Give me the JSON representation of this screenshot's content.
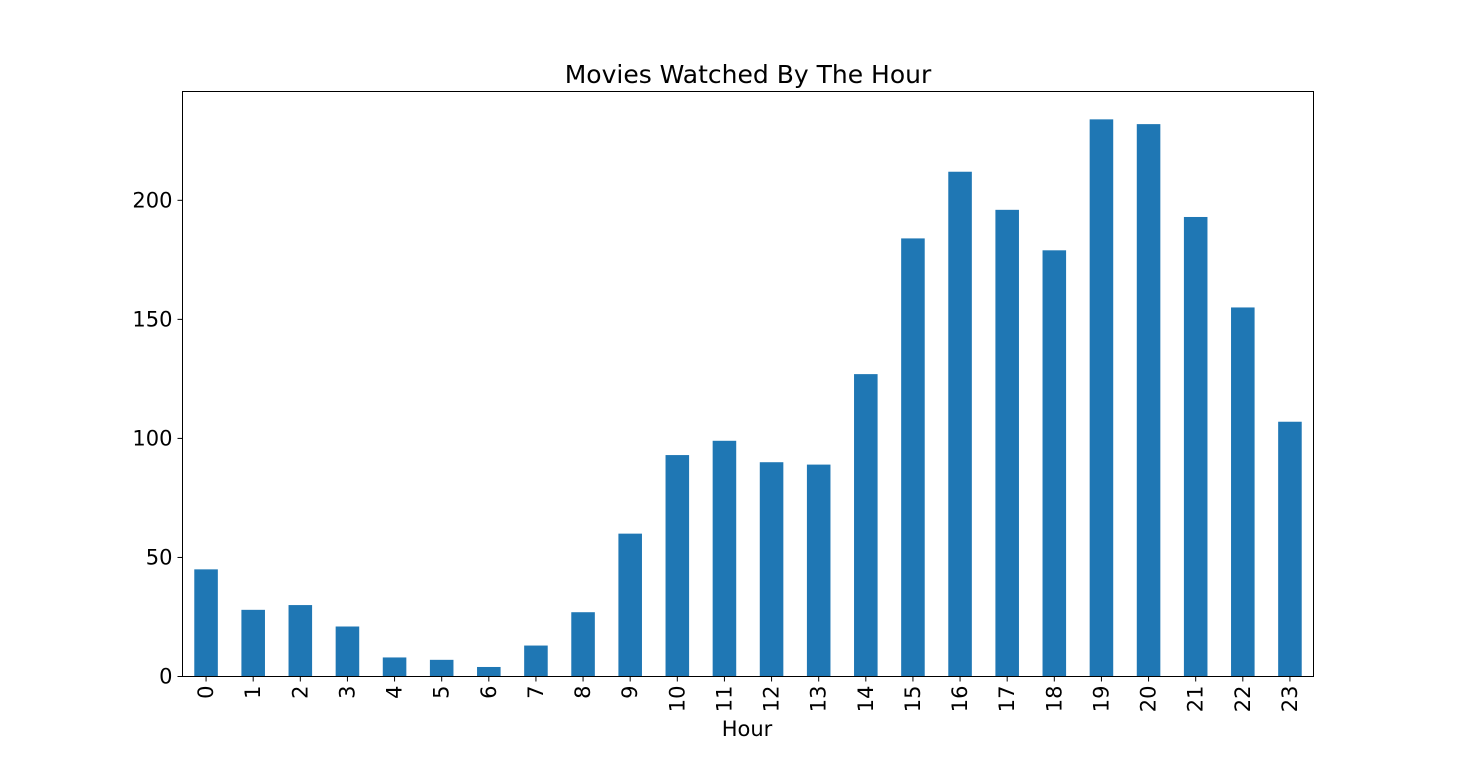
{
  "chart_data": {
    "type": "bar",
    "title": "Movies Watched By The Hour",
    "xlabel": "Hour",
    "ylabel": "",
    "categories": [
      "0",
      "1",
      "2",
      "3",
      "4",
      "5",
      "6",
      "7",
      "8",
      "9",
      "10",
      "11",
      "12",
      "13",
      "14",
      "15",
      "16",
      "17",
      "18",
      "19",
      "20",
      "21",
      "22",
      "23"
    ],
    "values": [
      45,
      28,
      30,
      21,
      8,
      7,
      4,
      13,
      27,
      60,
      93,
      99,
      90,
      89,
      127,
      184,
      212,
      196,
      179,
      234,
      232,
      193,
      155,
      107
    ],
    "ylim": [
      0,
      245.7
    ],
    "yticks": [
      0,
      50,
      100,
      150,
      200
    ],
    "ytick_labels": [
      "0",
      "50",
      "100",
      "150",
      "200"
    ],
    "bar_color": "#1f77b4",
    "grid": false,
    "legend": "none",
    "x_tick_rotation": "vertical"
  }
}
